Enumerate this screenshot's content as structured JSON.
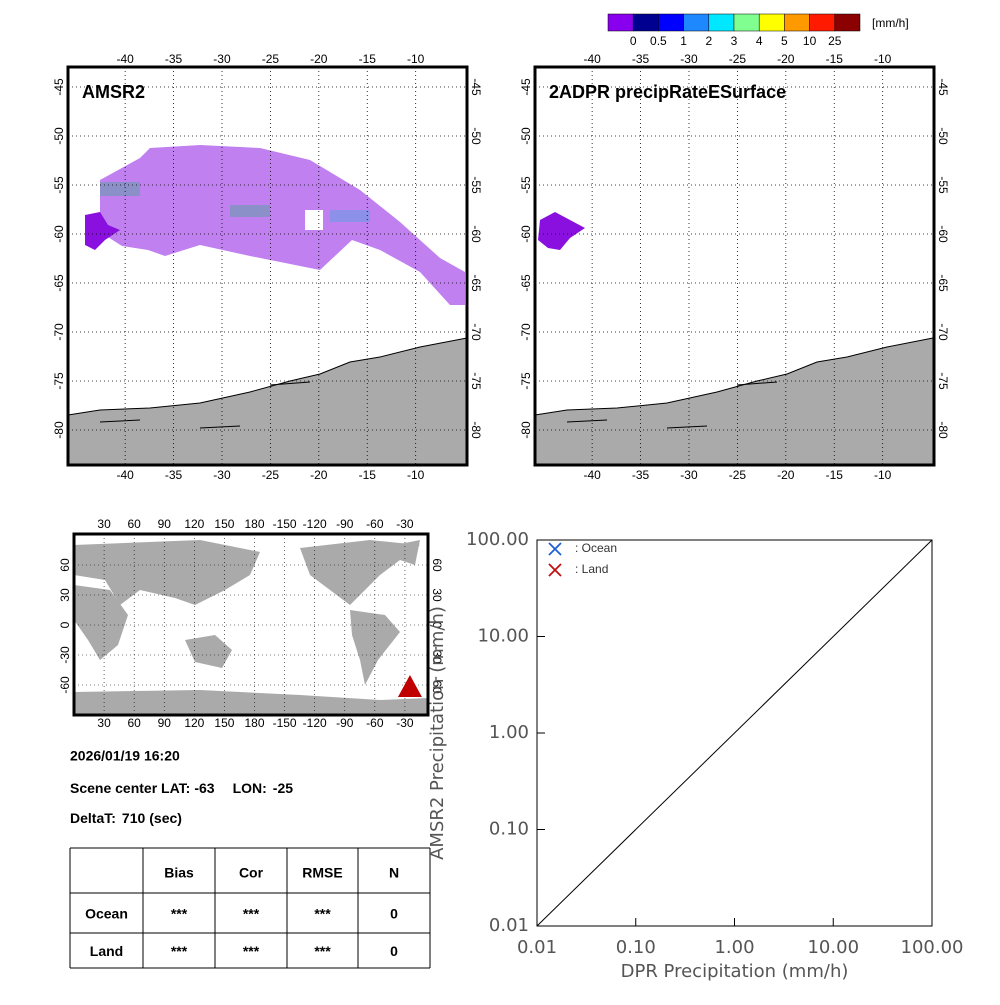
{
  "colorbar": {
    "unit": "[mm/h]",
    "levels": [
      0,
      0.5,
      1,
      2,
      3,
      4,
      5,
      10,
      25
    ],
    "colors": [
      "#8800ee",
      "#000090",
      "#0000ff",
      "#1e88ff",
      "#00e8ff",
      "#80ff90",
      "#ffff00",
      "#ff9900",
      "#ff1a00",
      "#8b0000"
    ]
  },
  "maps": [
    {
      "title": "AMSR2",
      "lonlim": [
        -45.9,
        -4.7
      ],
      "latlim": [
        -42.96,
        -83.57
      ],
      "lonticks": [
        -40,
        -35,
        -30,
        -25,
        -20,
        -15,
        -10
      ],
      "latticks": [
        -45,
        -50,
        -55,
        -60,
        -65,
        -70,
        -75,
        -80
      ]
    },
    {
      "title": "2ADPR precipRateESurface",
      "lonlim": [
        -45.9,
        -4.7
      ],
      "latlim": [
        -42.96,
        -83.57
      ],
      "lonticks": [
        -40,
        -35,
        -30,
        -25,
        -20,
        -15,
        -10
      ],
      "latticks": [
        -45,
        -50,
        -55,
        -60,
        -65,
        -70,
        -75,
        -80
      ]
    }
  ],
  "world_map": {
    "lonlim": [
      0,
      353
    ],
    "latlim": [
      91,
      -90
    ],
    "lonticks": [
      30,
      60,
      90,
      120,
      150,
      180,
      -150,
      -120,
      -90,
      -60,
      -30
    ],
    "latticks": [
      60,
      30,
      0,
      -30,
      -60
    ],
    "marker_color": "#c00000"
  },
  "info": {
    "datetime": "2026/01/19 16:20",
    "lat_label": "Scene center LAT:",
    "lat": -63,
    "lon_label": "LON:",
    "lon": -25,
    "delta_label": "DeltaT:",
    "delta_t": 710,
    "delta_unit": "(sec)"
  },
  "table": {
    "columns": [
      "Bias",
      "Cor",
      "RMSE",
      "N"
    ],
    "rows": [
      {
        "label": "Ocean",
        "cells": [
          "***",
          "***",
          "***",
          0
        ]
      },
      {
        "label": "Land",
        "cells": [
          "***",
          "***",
          "***",
          0
        ]
      }
    ]
  },
  "chart_data": {
    "type": "scatter",
    "xlabel": "DPR Precipitation (mm/h)",
    "ylabel": "AMSR2 Precipitation (mm/h)",
    "log": true,
    "xlim": [
      0.01,
      100
    ],
    "ylim": [
      0.01,
      100
    ],
    "xticks": [
      0.01,
      {
        "value": 0.1,
        "label": "0.10"
      },
      {
        "value": 1,
        "label": "1.00"
      },
      {
        "value": 10,
        "label": "10.00"
      },
      {
        "value": 100,
        "label": "100.00"
      }
    ],
    "yticks": [
      0.01,
      {
        "value": 0.1,
        "label": "0.10"
      },
      {
        "value": 1,
        "label": "1.00"
      },
      {
        "value": 10,
        "label": "10.00"
      },
      {
        "value": 100,
        "label": "100.00"
      }
    ],
    "series": [
      {
        "name": ": Ocean",
        "color": "#1f5fd6",
        "x": [],
        "values": []
      },
      {
        "name": ": Land",
        "color": "#c01010",
        "x": [],
        "values": []
      }
    ]
  }
}
